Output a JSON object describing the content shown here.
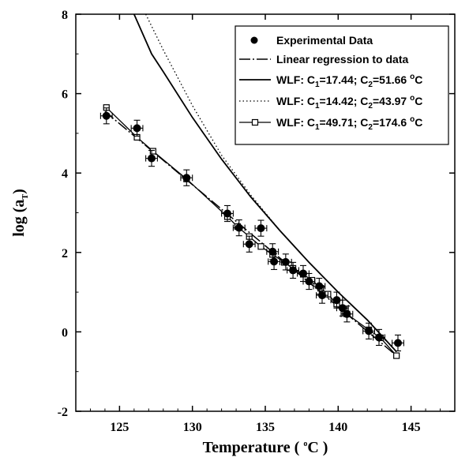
{
  "chart_data": {
    "type": "scatter",
    "xlabel": {
      "prefix": "Temperature ( ",
      "sup": "o",
      "suffix": "C )"
    },
    "ylabel": {
      "prefix": "log (a",
      "sub": "T",
      "suffix": ")"
    },
    "xlim": [
      122,
      148
    ],
    "ylim": [
      -2,
      8
    ],
    "xticks": [
      125,
      130,
      135,
      140,
      145
    ],
    "yticks": [
      -2,
      0,
      2,
      4,
      6,
      8
    ],
    "legend_position": "top-right",
    "legend": [
      {
        "key": "experimental",
        "text": "Experimental Data"
      },
      {
        "key": "regression",
        "text": "Linear regression to data"
      },
      {
        "key": "wlf1",
        "prefix": "WLF:  C",
        "c1sub": "1",
        "c1val": "=17.44;  C",
        "c2sub": "2",
        "c2val": "=51.66 ",
        "unitsup": "o",
        "unit": "C"
      },
      {
        "key": "wlf2",
        "prefix": "WLF:  C",
        "c1sub": "1",
        "c1val": "=14.42;  C",
        "c2sub": "2",
        "c2val": "=43.97 ",
        "unitsup": "o",
        "unit": "C"
      },
      {
        "key": "wlf3",
        "prefix": "WLF:  C",
        "c1sub": "1",
        "c1val": "=49.71;  C",
        "c2sub": "2",
        "c2val": "=174.6 ",
        "unitsup": "o",
        "unit": "C"
      }
    ],
    "experimental": [
      {
        "x": 124.1,
        "y": 5.44,
        "ex": 0.4,
        "ey": 0.2
      },
      {
        "x": 126.2,
        "y": 5.13,
        "ex": 0.4,
        "ey": 0.2
      },
      {
        "x": 127.2,
        "y": 4.37,
        "ex": 0.4,
        "ey": 0.2
      },
      {
        "x": 129.6,
        "y": 3.88,
        "ex": 0.4,
        "ey": 0.2
      },
      {
        "x": 132.4,
        "y": 2.98,
        "ex": 0.4,
        "ey": 0.2
      },
      {
        "x": 133.2,
        "y": 2.62,
        "ex": 0.4,
        "ey": 0.2
      },
      {
        "x": 133.9,
        "y": 2.21,
        "ex": 0.4,
        "ey": 0.2
      },
      {
        "x": 134.7,
        "y": 2.61,
        "ex": 0.4,
        "ey": 0.2
      },
      {
        "x": 135.5,
        "y": 2.02,
        "ex": 0.4,
        "ey": 0.2
      },
      {
        "x": 135.6,
        "y": 1.77,
        "ex": 0.4,
        "ey": 0.2
      },
      {
        "x": 136.4,
        "y": 1.76,
        "ex": 0.4,
        "ey": 0.2
      },
      {
        "x": 136.9,
        "y": 1.55,
        "ex": 0.4,
        "ey": 0.2
      },
      {
        "x": 137.6,
        "y": 1.47,
        "ex": 0.4,
        "ey": 0.2
      },
      {
        "x": 138.0,
        "y": 1.27,
        "ex": 0.4,
        "ey": 0.2
      },
      {
        "x": 138.7,
        "y": 1.15,
        "ex": 0.4,
        "ey": 0.2
      },
      {
        "x": 138.9,
        "y": 0.92,
        "ex": 0.4,
        "ey": 0.2
      },
      {
        "x": 139.9,
        "y": 0.8,
        "ex": 0.4,
        "ey": 0.2
      },
      {
        "x": 140.3,
        "y": 0.6,
        "ex": 0.4,
        "ey": 0.2
      },
      {
        "x": 140.6,
        "y": 0.45,
        "ex": 0.4,
        "ey": 0.2
      },
      {
        "x": 142.1,
        "y": 0.02,
        "ex": 0.4,
        "ey": 0.2
      },
      {
        "x": 142.8,
        "y": -0.14,
        "ex": 0.4,
        "ey": 0.2
      },
      {
        "x": 144.1,
        "y": -0.28,
        "ex": 0.4,
        "ey": 0.2
      }
    ],
    "regression": {
      "x": [
        124.0,
        144.0
      ],
      "y": [
        5.55,
        -0.6
      ]
    },
    "wlf1": {
      "x": [
        126.0,
        127.2,
        128.0,
        130.0,
        132.0,
        134.0,
        136.0,
        138.0,
        140.0,
        142.0,
        144.0
      ],
      "y": [
        8.0,
        7.0,
        6.55,
        5.4,
        4.35,
        3.4,
        2.55,
        1.75,
        1.0,
        0.3,
        -0.5
      ]
    },
    "wlf2": {
      "x": [
        126.8,
        128.0,
        130.0,
        132.0,
        134.0,
        136.0,
        138.0,
        140.0,
        142.0,
        144.0
      ],
      "y": [
        8.0,
        7.1,
        5.7,
        4.45,
        3.45,
        2.55,
        1.75,
        1.0,
        0.3,
        -0.5
      ]
    },
    "wlf3": {
      "x": [
        124.1,
        126.2,
        127.3,
        129.6,
        132.4,
        133.1,
        133.9,
        134.7,
        135.5,
        136.3,
        136.9,
        137.6,
        138.2,
        138.8,
        139.3,
        139.9,
        140.6,
        142.1,
        142.9,
        144.0
      ],
      "y": [
        5.65,
        4.9,
        4.55,
        3.85,
        2.9,
        2.65,
        2.4,
        2.15,
        1.95,
        1.75,
        1.6,
        1.45,
        1.3,
        1.1,
        0.95,
        0.7,
        0.45,
        0.05,
        -0.15,
        -0.6
      ]
    }
  }
}
